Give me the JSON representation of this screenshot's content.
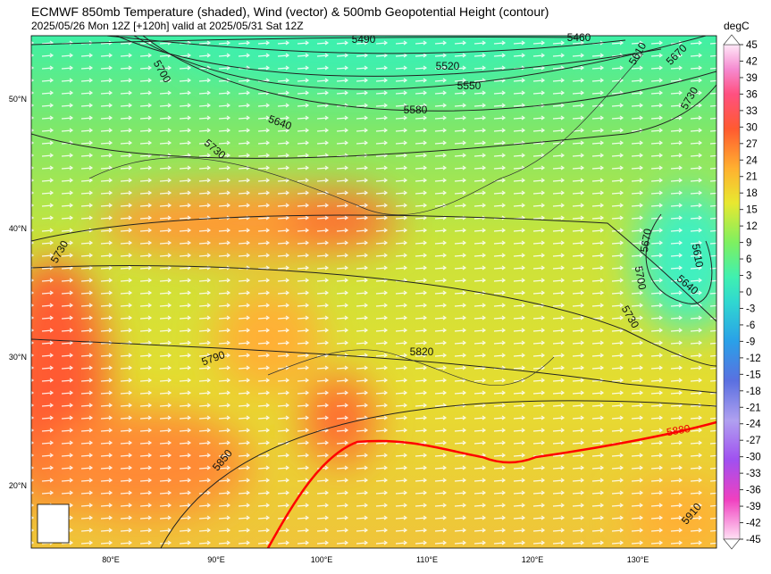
{
  "header": {
    "title": "ECMWF 850mb Temperature (shaded), Wind (vector) & 500mb Geopotential Height (contour)",
    "subtitle": "2025/05/26 Mon 12Z [+120h] valid at 2025/05/31 Sat 12Z"
  },
  "map": {
    "latitude_labels": [
      "50°N",
      "40°N",
      "30°N",
      "20°N"
    ],
    "longitude_labels": [
      "80°E",
      "90°E",
      "100°E",
      "110°E",
      "120°E",
      "130°E"
    ],
    "contour_labels": [
      "5490",
      "5460",
      "5520",
      "5550",
      "5580",
      "5610",
      "5670",
      "5700",
      "5640",
      "5730",
      "5730",
      "5730",
      "5670",
      "5610",
      "5700",
      "5640",
      "5730",
      "5790",
      "5820",
      "5850",
      "5880",
      "5910"
    ]
  },
  "colorbar": {
    "unit": "degC",
    "ticks": [
      "45",
      "42",
      "39",
      "36",
      "33",
      "30",
      "27",
      "24",
      "21",
      "18",
      "15",
      "12",
      "9",
      "6",
      "3",
      "0",
      "-3",
      "-6",
      "-9",
      "-12",
      "-15",
      "-18",
      "-21",
      "-24",
      "-27",
      "-30",
      "-33",
      "-36",
      "-39",
      "-42",
      "-45"
    ]
  }
}
